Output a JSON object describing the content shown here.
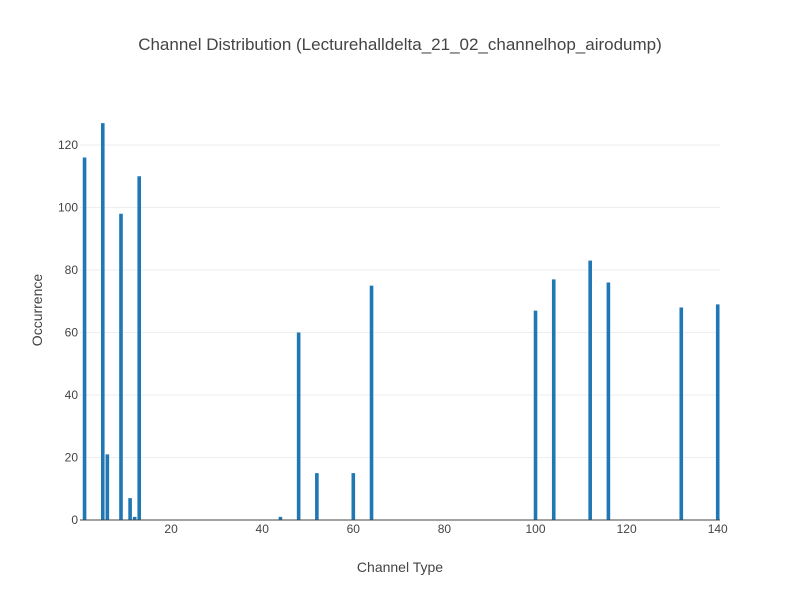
{
  "chart_data": {
    "type": "bar",
    "title": "Channel Distribution (Lecturehalldelta_21_02_channelhop_airodump)",
    "xlabel": "Channel Type",
    "ylabel": "Occurrence",
    "xlim": [
      0,
      140.5
    ],
    "ylim": [
      0,
      128
    ],
    "x_ticks": [
      20,
      40,
      60,
      80,
      100,
      120,
      140
    ],
    "y_ticks": [
      0,
      20,
      40,
      60,
      80,
      100,
      120
    ],
    "grid": "y",
    "bar_color": "#1f77b4",
    "x": [
      1,
      5,
      6,
      9,
      11,
      12,
      13,
      44,
      48,
      52,
      60,
      64,
      100,
      104,
      112,
      116,
      132,
      140
    ],
    "values": [
      116,
      127,
      21,
      98,
      7,
      1,
      110,
      1,
      60,
      15,
      15,
      75,
      67,
      77,
      83,
      76,
      68,
      69
    ]
  }
}
